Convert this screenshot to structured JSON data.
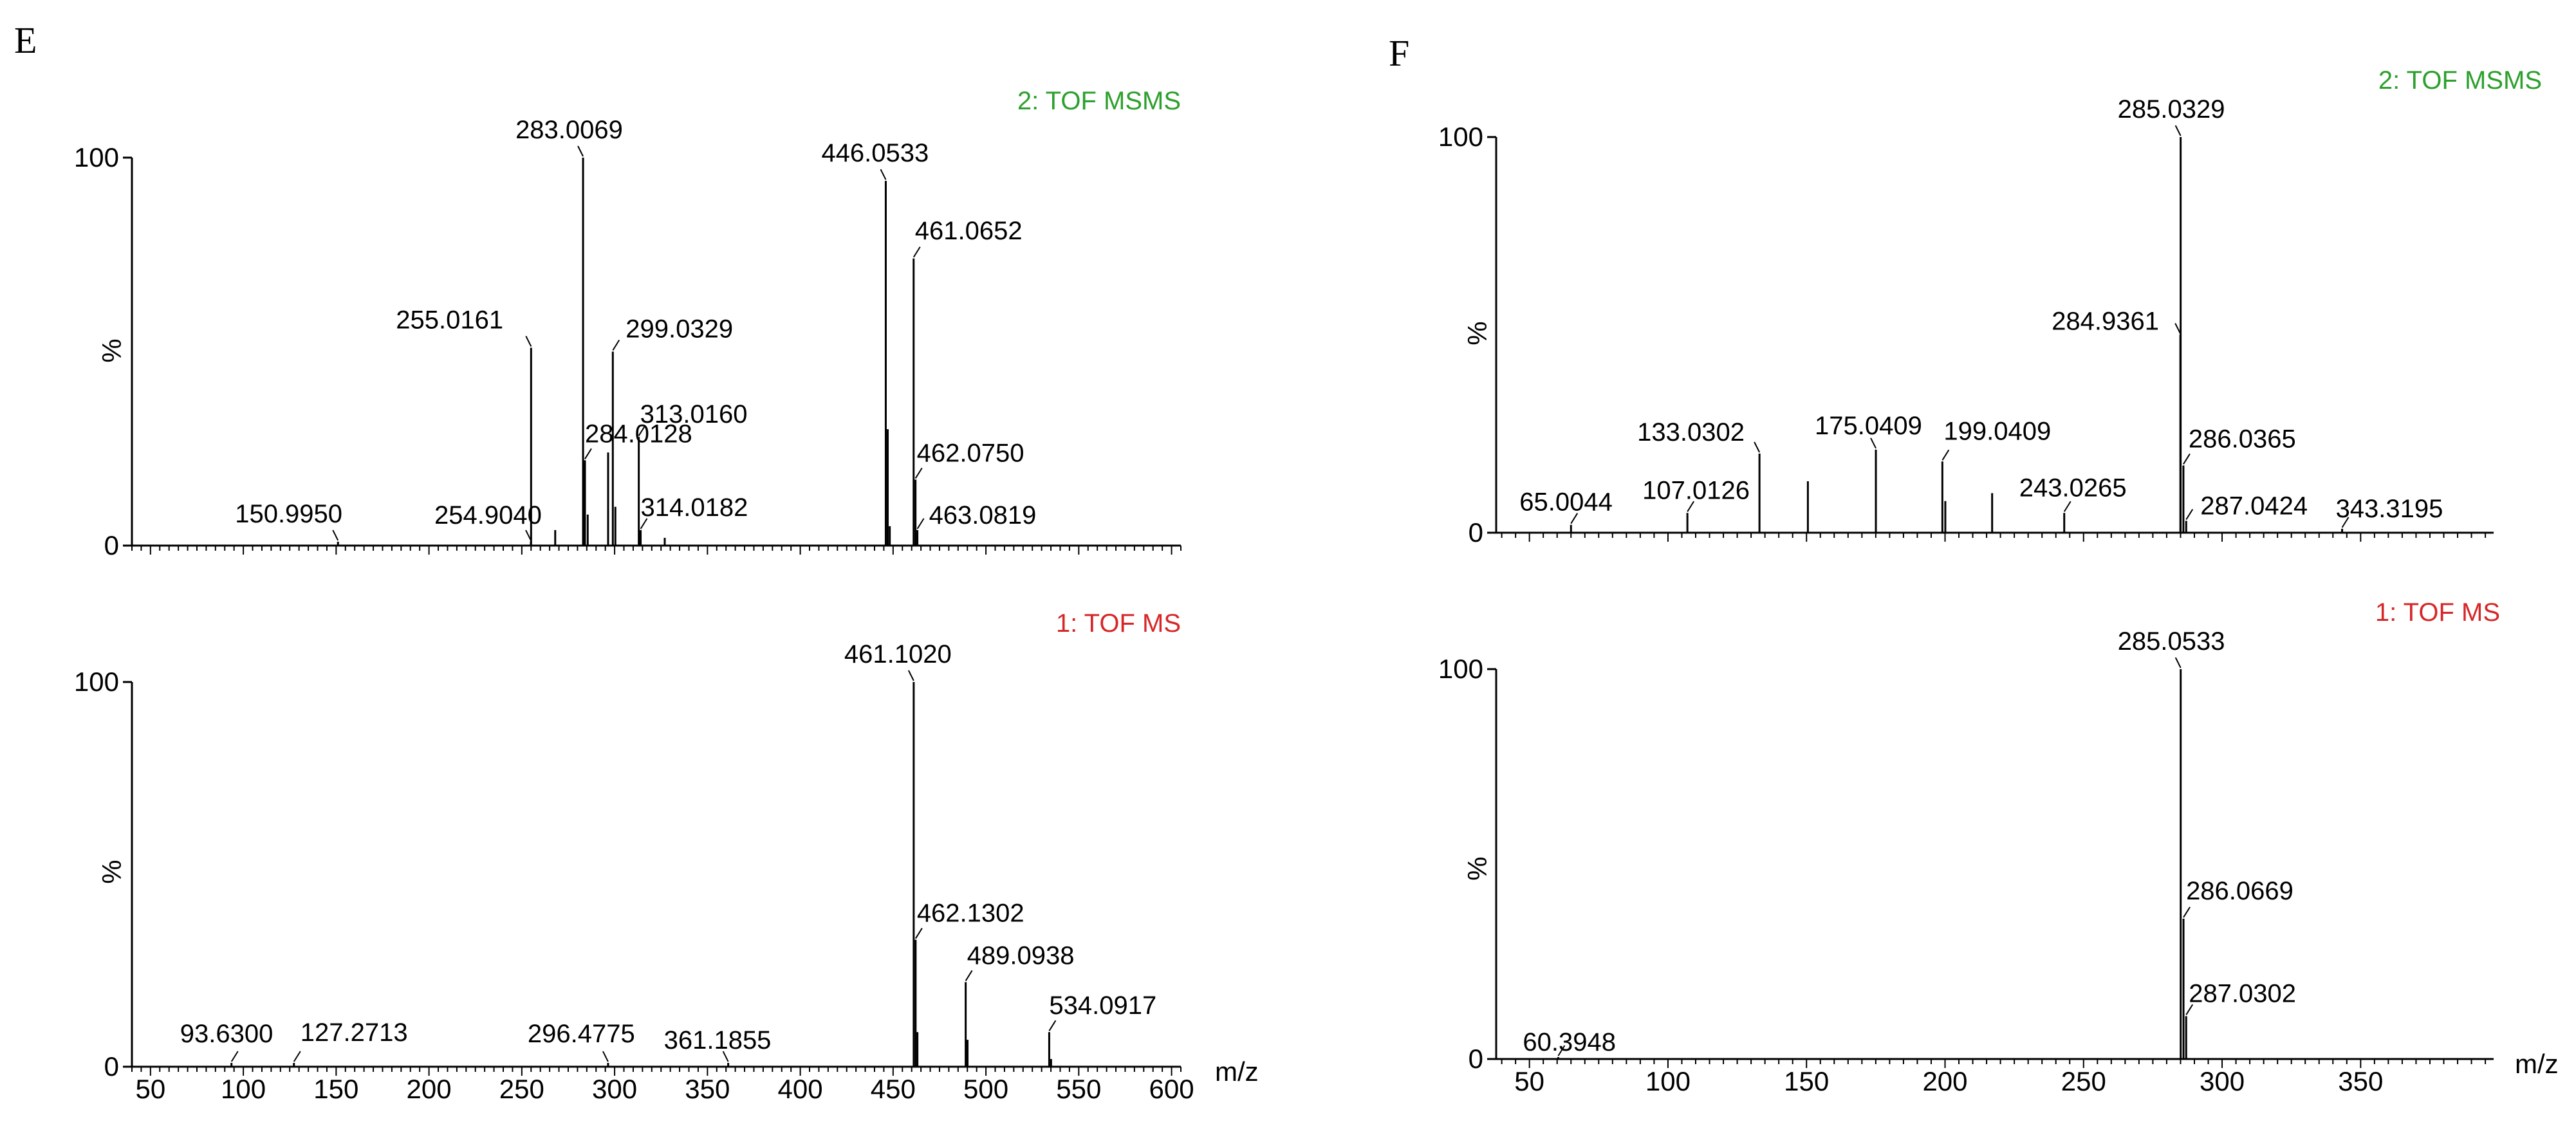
{
  "chart_data": [
    {
      "panel_letter": "E",
      "x_unit_label": "m/z",
      "xlim": [
        40,
        605
      ],
      "x_ticks": [
        50,
        100,
        150,
        200,
        250,
        300,
        350,
        400,
        450,
        500,
        550,
        600
      ],
      "plots": [
        {
          "type": "bar",
          "function_label": "2: TOF MSMS",
          "label_color": "#2ca02c",
          "ylabel": "%",
          "ylim": [
            0,
            100
          ],
          "y_ticks": [
            0,
            100
          ],
          "peaks": [
            {
              "mz": 150.995,
              "intensity": 1,
              "label": "150.9950"
            },
            {
              "mz": 254.904,
              "intensity": 1,
              "label": "254.9040"
            },
            {
              "mz": 255.0161,
              "intensity": 51,
              "label": "255.0161"
            },
            {
              "mz": 268,
              "intensity": 4
            },
            {
              "mz": 283.0069,
              "intensity": 100,
              "label": "283.0069"
            },
            {
              "mz": 284.0128,
              "intensity": 22,
              "label": "284.0128"
            },
            {
              "mz": 285.5,
              "intensity": 8
            },
            {
              "mz": 296.5,
              "intensity": 24
            },
            {
              "mz": 299.0329,
              "intensity": 50,
              "label": "299.0329"
            },
            {
              "mz": 300.4,
              "intensity": 10
            },
            {
              "mz": 313.016,
              "intensity": 28,
              "label": "313.0160"
            },
            {
              "mz": 314.0182,
              "intensity": 4,
              "label": "314.0182"
            },
            {
              "mz": 327,
              "intensity": 2
            },
            {
              "mz": 446.0533,
              "intensity": 94,
              "label": "446.0533"
            },
            {
              "mz": 447.1,
              "intensity": 30
            },
            {
              "mz": 448.2,
              "intensity": 5
            },
            {
              "mz": 461.0652,
              "intensity": 74,
              "label": "461.0652"
            },
            {
              "mz": 462.075,
              "intensity": 17,
              "label": "462.0750"
            },
            {
              "mz": 463.0819,
              "intensity": 4,
              "label": "463.0819"
            }
          ]
        },
        {
          "type": "bar",
          "function_label": "1: TOF MS",
          "label_color": "#d62728",
          "ylabel": "%",
          "ylim": [
            0,
            100
          ],
          "y_ticks": [
            0,
            100
          ],
          "peaks": [
            {
              "mz": 93.63,
              "intensity": 1,
              "label": "93.6300"
            },
            {
              "mz": 127.2713,
              "intensity": 1,
              "label": "127.2713"
            },
            {
              "mz": 296.4775,
              "intensity": 1,
              "label": "296.4775"
            },
            {
              "mz": 361.1855,
              "intensity": 1,
              "label": "361.1855"
            },
            {
              "mz": 461.102,
              "intensity": 100,
              "label": "461.1020"
            },
            {
              "mz": 462.1302,
              "intensity": 33,
              "label": "462.1302"
            },
            {
              "mz": 463.1,
              "intensity": 9
            },
            {
              "mz": 489.0938,
              "intensity": 22,
              "label": "489.0938"
            },
            {
              "mz": 490.1,
              "intensity": 7
            },
            {
              "mz": 534.0917,
              "intensity": 9,
              "label": "534.0917"
            },
            {
              "mz": 535.1,
              "intensity": 2
            }
          ]
        }
      ]
    },
    {
      "panel_letter": "F",
      "x_unit_label": "m/z",
      "xlim": [
        38,
        398
      ],
      "x_ticks": [
        50,
        100,
        150,
        200,
        250,
        300,
        350
      ],
      "plots": [
        {
          "type": "bar",
          "function_label": "2: TOF MSMS",
          "label_color": "#2ca02c",
          "ylabel": "%",
          "ylim": [
            0,
            100
          ],
          "y_ticks": [
            0,
            100
          ],
          "peaks": [
            {
              "mz": 65.0044,
              "intensity": 2,
              "label": "65.0044"
            },
            {
              "mz": 107.0126,
              "intensity": 5,
              "label": "107.0126"
            },
            {
              "mz": 133.0302,
              "intensity": 20,
              "label": "133.0302"
            },
            {
              "mz": 150.5,
              "intensity": 13
            },
            {
              "mz": 175.0409,
              "intensity": 21,
              "label": "175.0409"
            },
            {
              "mz": 199.0409,
              "intensity": 18,
              "label": "199.0409"
            },
            {
              "mz": 200.1,
              "intensity": 8
            },
            {
              "mz": 217,
              "intensity": 10
            },
            {
              "mz": 243.0265,
              "intensity": 5,
              "label": "243.0265"
            },
            {
              "mz": 284.9361,
              "intensity": 50,
              "label": "284.9361"
            },
            {
              "mz": 285.0329,
              "intensity": 100,
              "label": "285.0329"
            },
            {
              "mz": 286.0365,
              "intensity": 17,
              "label": "286.0365"
            },
            {
              "mz": 287.0424,
              "intensity": 3,
              "label": "287.0424"
            },
            {
              "mz": 343.3195,
              "intensity": 1,
              "label": "343.3195"
            }
          ]
        },
        {
          "type": "bar",
          "function_label": "1: TOF MS",
          "label_color": "#d62728",
          "ylabel": "%",
          "ylim": [
            0,
            100
          ],
          "y_ticks": [
            0,
            100
          ],
          "peaks": [
            {
              "mz": 60.3948,
              "intensity": 0.5,
              "label": "60.3948"
            },
            {
              "mz": 285.0533,
              "intensity": 100,
              "label": "285.0533"
            },
            {
              "mz": 286.0669,
              "intensity": 36,
              "label": "286.0669"
            },
            {
              "mz": 287.0302,
              "intensity": 11,
              "label": "287.0302"
            }
          ]
        }
      ]
    }
  ]
}
